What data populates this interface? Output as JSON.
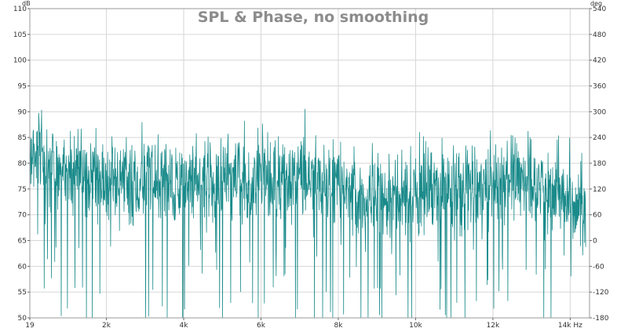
{
  "chart_data": {
    "type": "line",
    "title": "SPL & Phase, no smoothing",
    "left_axis": {
      "unit": "dB",
      "range": [
        50,
        110
      ],
      "ticks": [
        50,
        55,
        60,
        65,
        70,
        75,
        80,
        85,
        90,
        95,
        100,
        105,
        110
      ],
      "tick_labels": [
        "50",
        "55",
        "60",
        "65",
        "70",
        "75",
        "80",
        "85",
        "90",
        "95",
        "100",
        "105",
        "110"
      ]
    },
    "right_axis": {
      "unit": "deg",
      "range": [
        -180,
        540
      ],
      "ticks": [
        -180,
        -120,
        -60,
        0,
        60,
        120,
        180,
        240,
        300,
        360,
        420,
        480,
        540
      ],
      "tick_labels": [
        "-180",
        "-120",
        "-60",
        "0",
        "60",
        "120",
        "180",
        "240",
        "300",
        "360",
        "420",
        "480",
        "540"
      ]
    },
    "x_axis": {
      "unit": "Hz",
      "range": [
        19,
        14500
      ],
      "ticks": [
        19,
        2000,
        4000,
        6000,
        8000,
        10000,
        12000,
        14000
      ],
      "tick_labels": [
        "19",
        "2k",
        "4k",
        "6k",
        "8k",
        "10k",
        "12k",
        "14k Hz"
      ]
    },
    "grid": true,
    "series": [
      {
        "color": "#1a8a8a",
        "x": [
          19,
          1000,
          2000,
          3000,
          4000,
          5000,
          6000,
          7000,
          8000,
          9000,
          10000,
          11000,
          12000,
          13000,
          14000,
          14400
        ],
        "mean": [
          80,
          79,
          76,
          77,
          76,
          77,
          78,
          77,
          76,
          73,
          74,
          75,
          76,
          76,
          73,
          71
        ],
        "typical_spread_db": 6,
        "peak": 90.5,
        "min": 50
      }
    ]
  }
}
